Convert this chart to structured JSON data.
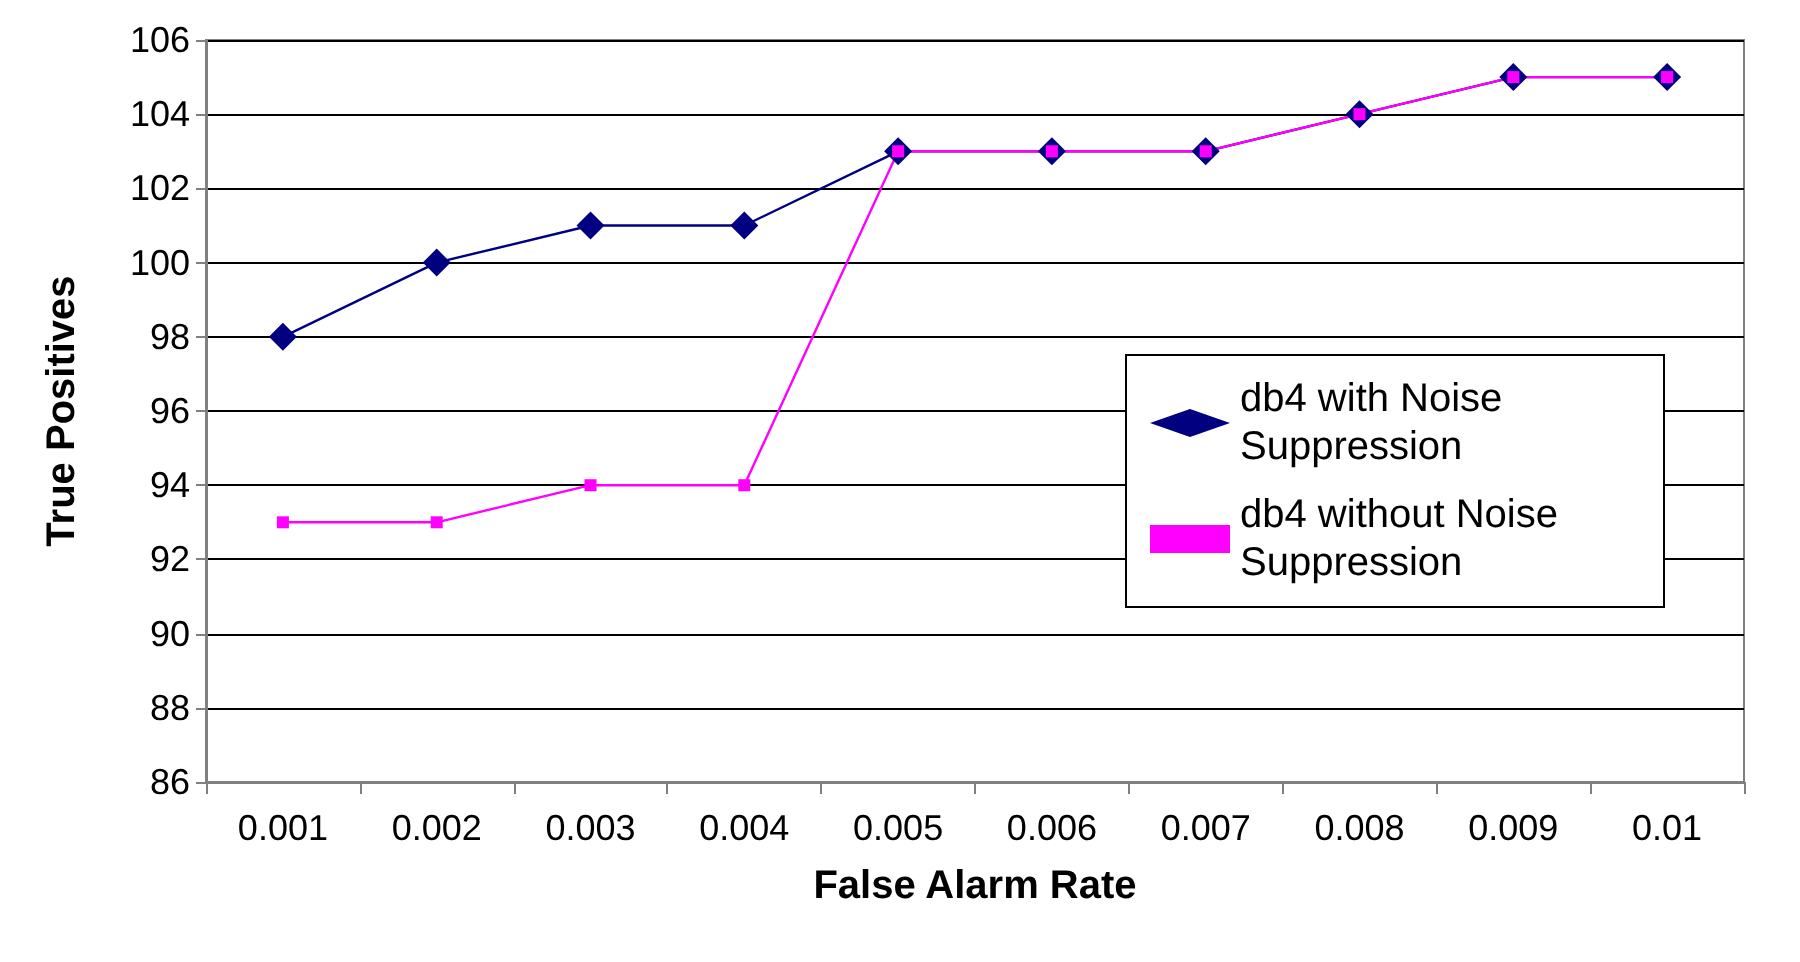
{
  "chart_data": {
    "type": "line",
    "xlabel": "False Alarm Rate",
    "ylabel": "True Positives",
    "categories": [
      "0.001",
      "0.002",
      "0.003",
      "0.004",
      "0.005",
      "0.006",
      "0.007",
      "0.008",
      "0.009",
      "0.01"
    ],
    "series": [
      {
        "name": "db4 with Noise Suppression",
        "color": "#000080",
        "marker": "diamond",
        "values": [
          98,
          100,
          101,
          101,
          103,
          103,
          103,
          104,
          105,
          105
        ]
      },
      {
        "name": "db4 without Noise Suppression",
        "color": "#ff00ff",
        "marker": "square",
        "values": [
          93,
          93,
          94,
          94,
          103,
          103,
          103,
          104,
          105,
          105
        ]
      }
    ],
    "ylim": [
      86,
      106
    ],
    "yticks": [
      86,
      88,
      90,
      92,
      94,
      96,
      98,
      100,
      102,
      104,
      106
    ],
    "grid": "y",
    "legend": "right",
    "line_style": "solid"
  }
}
